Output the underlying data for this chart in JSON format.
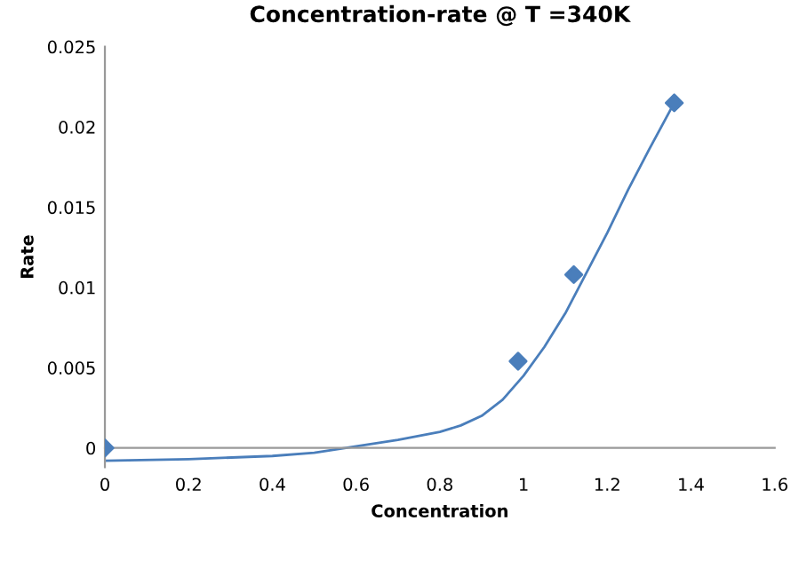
{
  "chart_data": {
    "type": "scatter",
    "title": "Concentration-rate @ T =340K",
    "xlabel": "Concentration",
    "ylabel": "Rate",
    "xlim": [
      0,
      1.6
    ],
    "xticks": [
      0,
      0.2,
      0.4,
      0.6,
      0.8,
      1,
      1.2,
      1.4,
      1.6
    ],
    "ylim": [
      -0.0012,
      0.025
    ],
    "yticks": [
      0,
      0.005,
      0.01,
      0.015,
      0.02,
      0.025
    ],
    "grid": false,
    "legend": false,
    "marker": "diamond",
    "series": [
      {
        "color": "#4a7ebb",
        "x": [
          0,
          0.987,
          1.12,
          1.36
        ],
        "values": [
          0,
          0.0054,
          0.0108,
          0.0215
        ]
      },
      {
        "type": "line",
        "color": "#4a7ebb",
        "marker": "none",
        "line_style": "solid",
        "x": [
          0,
          0.2,
          0.4,
          0.5,
          0.6,
          0.7,
          0.8,
          0.85,
          0.9,
          0.95,
          1.0,
          1.05,
          1.1,
          1.15,
          1.2,
          1.25,
          1.3,
          1.36
        ],
        "values": [
          -0.0008,
          -0.0007,
          -0.0005,
          -0.0003,
          0.0001,
          0.0005,
          0.001,
          0.0014,
          0.002,
          0.003,
          0.0045,
          0.0063,
          0.0084,
          0.0109,
          0.0134,
          0.0161,
          0.0186,
          0.0215
        ]
      }
    ]
  }
}
